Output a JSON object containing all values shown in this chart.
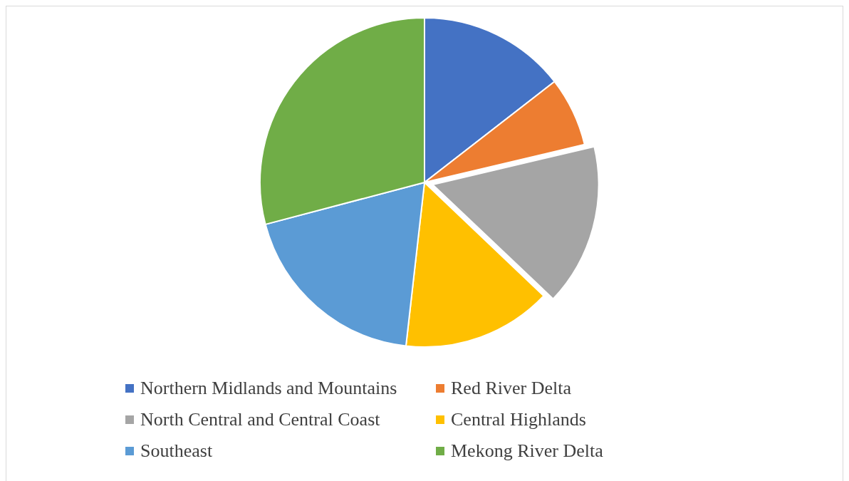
{
  "chart_data": {
    "type": "pie",
    "categories": [
      "Northern Midlands and Mountains",
      "Red River Delta",
      "North Central and Central Coast",
      "Central Highlands",
      "Southeast",
      "Mekong River Delta"
    ],
    "values": [
      14.5,
      6.8,
      15.8,
      14.7,
      19.1,
      29.1
    ],
    "colors": [
      "#4472c4",
      "#ed7d31",
      "#a5a5a5",
      "#ffc000",
      "#5b9bd5",
      "#70ad47"
    ],
    "legend": "bottom"
  }
}
